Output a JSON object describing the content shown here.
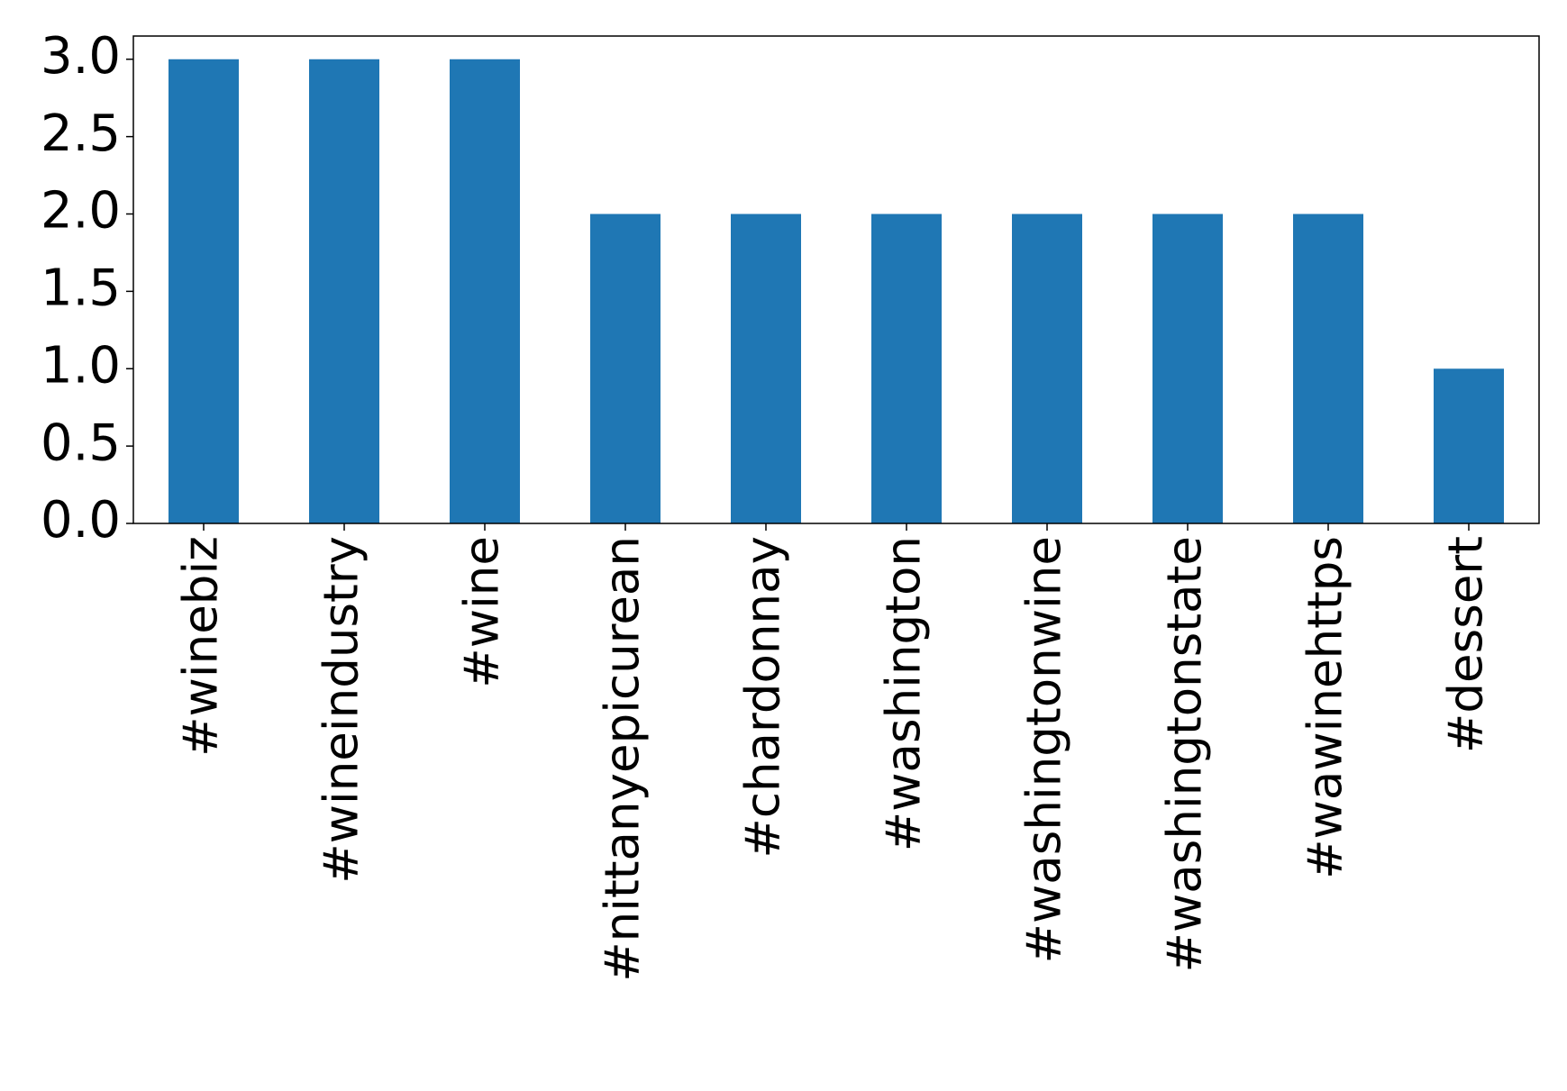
{
  "chart_data": {
    "type": "bar",
    "categories": [
      "#winebiz",
      "#wineindustry",
      "#wine",
      "#nittanyepicurean",
      "#chardonnay",
      "#washington",
      "#washingtonwine",
      "#washingtonstate",
      "#wawinehttps",
      "#dessert"
    ],
    "values": [
      3,
      3,
      3,
      2,
      2,
      2,
      2,
      2,
      2,
      1
    ],
    "color": "#1f77b4",
    "ylim": [
      0,
      3.15
    ],
    "yticks": [
      {
        "value": 0,
        "label": "0.0"
      },
      0.5,
      {
        "value": 1,
        "label": "1.0"
      },
      1.5,
      {
        "value": 2,
        "label": "2.0"
      },
      2.5,
      {
        "value": 3,
        "label": "3.0"
      }
    ],
    "grid": false
  }
}
